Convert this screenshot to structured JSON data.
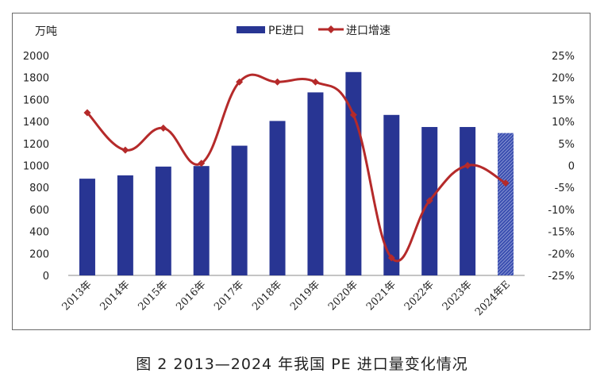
{
  "caption": "图 2  2013—2024 年我国 PE 进口量变化情况",
  "chart_data": {
    "type": "bar",
    "categories": [
      "2013年",
      "2014年",
      "2015年",
      "2016年",
      "2017年",
      "2018年",
      "2019年",
      "2020年",
      "2021年",
      "2022年",
      "2023年",
      "2024年E"
    ],
    "series": [
      {
        "name": "PE进口",
        "kind": "bar",
        "axis": "left",
        "color": "#283593",
        "values": [
          880,
          910,
          990,
          995,
          1180,
          1405,
          1665,
          1850,
          1460,
          1350,
          1350,
          1295
        ],
        "hatched_index": 11
      },
      {
        "name": "进口增速",
        "kind": "line",
        "axis": "right",
        "color": "#b52a2a",
        "unit": "%",
        "values": [
          12,
          3.5,
          8.5,
          0.5,
          19,
          19,
          19,
          11.5,
          -21,
          -8,
          0,
          -4
        ]
      }
    ],
    "y_left": {
      "label": "万吨",
      "ylim": [
        0,
        2000
      ],
      "ticks": [
        "0",
        "200",
        "400",
        "600",
        "800",
        "1000",
        "1200",
        "1400",
        "1600",
        "1800",
        "2000"
      ]
    },
    "y_right": {
      "ylim": [
        -25,
        25
      ],
      "ticks": [
        "-25%",
        "-20%",
        "-15%",
        "-10%",
        "-5%",
        "0",
        "5%",
        "10%",
        "15%",
        "20%",
        "25%"
      ]
    },
    "legend": {
      "position": "top-center"
    },
    "grid": false
  }
}
